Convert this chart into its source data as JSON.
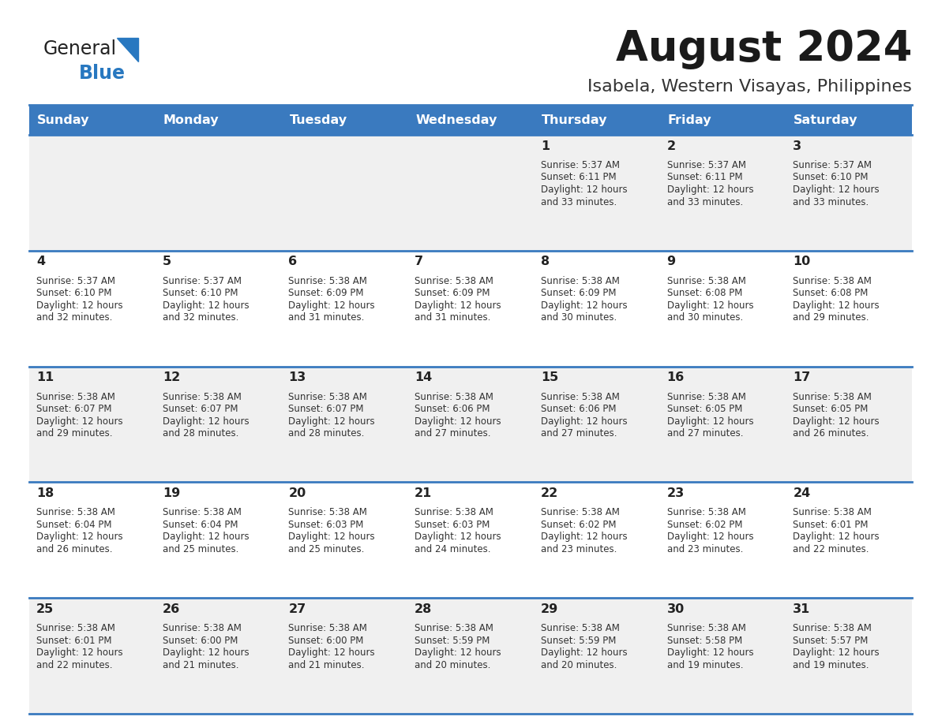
{
  "title": "August 2024",
  "subtitle": "Isabela, Western Visayas, Philippines",
  "header_bg": "#3a7abf",
  "header_text_color": "#ffffff",
  "row_bg_alt": "#f0f0f0",
  "row_bg_white": "#ffffff",
  "cell_border_color": "#3a7abf",
  "day_headers": [
    "Sunday",
    "Monday",
    "Tuesday",
    "Wednesday",
    "Thursday",
    "Friday",
    "Saturday"
  ],
  "calendar_data": [
    [
      {
        "day": "",
        "sunrise": "",
        "sunset": "",
        "daylight_mins": ""
      },
      {
        "day": "",
        "sunrise": "",
        "sunset": "",
        "daylight_mins": ""
      },
      {
        "day": "",
        "sunrise": "",
        "sunset": "",
        "daylight_mins": ""
      },
      {
        "day": "",
        "sunrise": "",
        "sunset": "",
        "daylight_mins": ""
      },
      {
        "day": "1",
        "sunrise": "5:37 AM",
        "sunset": "6:11 PM",
        "daylight_mins": "33"
      },
      {
        "day": "2",
        "sunrise": "5:37 AM",
        "sunset": "6:11 PM",
        "daylight_mins": "33"
      },
      {
        "day": "3",
        "sunrise": "5:37 AM",
        "sunset": "6:10 PM",
        "daylight_mins": "33"
      }
    ],
    [
      {
        "day": "4",
        "sunrise": "5:37 AM",
        "sunset": "6:10 PM",
        "daylight_mins": "32"
      },
      {
        "day": "5",
        "sunrise": "5:37 AM",
        "sunset": "6:10 PM",
        "daylight_mins": "32"
      },
      {
        "day": "6",
        "sunrise": "5:38 AM",
        "sunset": "6:09 PM",
        "daylight_mins": "31"
      },
      {
        "day": "7",
        "sunrise": "5:38 AM",
        "sunset": "6:09 PM",
        "daylight_mins": "31"
      },
      {
        "day": "8",
        "sunrise": "5:38 AM",
        "sunset": "6:09 PM",
        "daylight_mins": "30"
      },
      {
        "day": "9",
        "sunrise": "5:38 AM",
        "sunset": "6:08 PM",
        "daylight_mins": "30"
      },
      {
        "day": "10",
        "sunrise": "5:38 AM",
        "sunset": "6:08 PM",
        "daylight_mins": "29"
      }
    ],
    [
      {
        "day": "11",
        "sunrise": "5:38 AM",
        "sunset": "6:07 PM",
        "daylight_mins": "29"
      },
      {
        "day": "12",
        "sunrise": "5:38 AM",
        "sunset": "6:07 PM",
        "daylight_mins": "28"
      },
      {
        "day": "13",
        "sunrise": "5:38 AM",
        "sunset": "6:07 PM",
        "daylight_mins": "28"
      },
      {
        "day": "14",
        "sunrise": "5:38 AM",
        "sunset": "6:06 PM",
        "daylight_mins": "27"
      },
      {
        "day": "15",
        "sunrise": "5:38 AM",
        "sunset": "6:06 PM",
        "daylight_mins": "27"
      },
      {
        "day": "16",
        "sunrise": "5:38 AM",
        "sunset": "6:05 PM",
        "daylight_mins": "27"
      },
      {
        "day": "17",
        "sunrise": "5:38 AM",
        "sunset": "6:05 PM",
        "daylight_mins": "26"
      }
    ],
    [
      {
        "day": "18",
        "sunrise": "5:38 AM",
        "sunset": "6:04 PM",
        "daylight_mins": "26"
      },
      {
        "day": "19",
        "sunrise": "5:38 AM",
        "sunset": "6:04 PM",
        "daylight_mins": "25"
      },
      {
        "day": "20",
        "sunrise": "5:38 AM",
        "sunset": "6:03 PM",
        "daylight_mins": "25"
      },
      {
        "day": "21",
        "sunrise": "5:38 AM",
        "sunset": "6:03 PM",
        "daylight_mins": "24"
      },
      {
        "day": "22",
        "sunrise": "5:38 AM",
        "sunset": "6:02 PM",
        "daylight_mins": "23"
      },
      {
        "day": "23",
        "sunrise": "5:38 AM",
        "sunset": "6:02 PM",
        "daylight_mins": "23"
      },
      {
        "day": "24",
        "sunrise": "5:38 AM",
        "sunset": "6:01 PM",
        "daylight_mins": "22"
      }
    ],
    [
      {
        "day": "25",
        "sunrise": "5:38 AM",
        "sunset": "6:01 PM",
        "daylight_mins": "22"
      },
      {
        "day": "26",
        "sunrise": "5:38 AM",
        "sunset": "6:00 PM",
        "daylight_mins": "21"
      },
      {
        "day": "27",
        "sunrise": "5:38 AM",
        "sunset": "6:00 PM",
        "daylight_mins": "21"
      },
      {
        "day": "28",
        "sunrise": "5:38 AM",
        "sunset": "5:59 PM",
        "daylight_mins": "20"
      },
      {
        "day": "29",
        "sunrise": "5:38 AM",
        "sunset": "5:59 PM",
        "daylight_mins": "20"
      },
      {
        "day": "30",
        "sunrise": "5:38 AM",
        "sunset": "5:58 PM",
        "daylight_mins": "19"
      },
      {
        "day": "31",
        "sunrise": "5:38 AM",
        "sunset": "5:57 PM",
        "daylight_mins": "19"
      }
    ]
  ]
}
